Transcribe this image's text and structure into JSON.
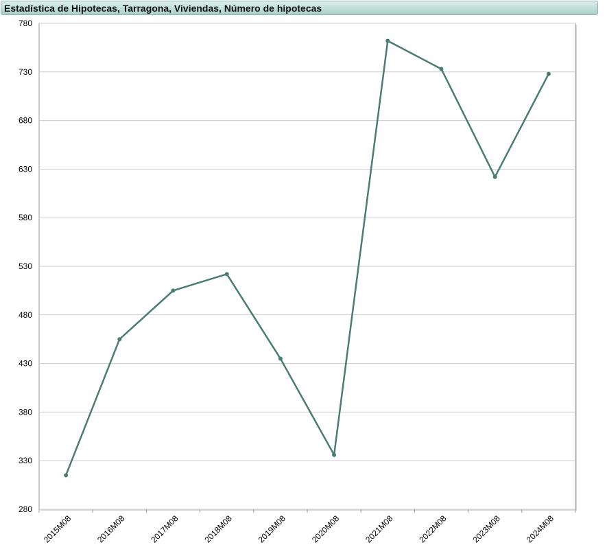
{
  "chart_data": {
    "type": "line",
    "title": "Estadística de Hipotecas, Tarragona, Viviendas, Número de hipotecas",
    "categories": [
      "2015M08",
      "2016M08",
      "2017M08",
      "2018M08",
      "2019M08",
      "2020M08",
      "2021M08",
      "2022M08",
      "2023M08",
      "2024M08"
    ],
    "series": [
      {
        "color": "#4a7d72",
        "values": [
          315,
          455,
          505,
          522,
          435,
          336,
          762,
          733,
          622,
          728
        ]
      }
    ],
    "ylim": [
      280,
      780
    ],
    "yticks": [
      280,
      330,
      380,
      430,
      480,
      530,
      580,
      630,
      680,
      730,
      780
    ],
    "grid": true
  }
}
